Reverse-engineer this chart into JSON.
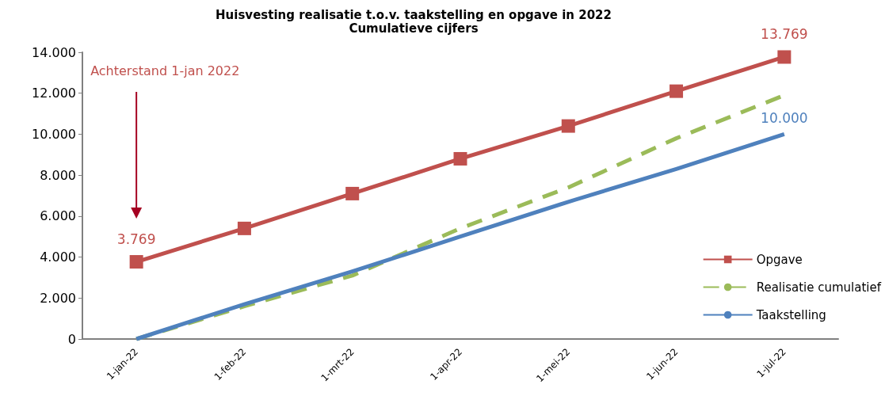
{
  "chart_data": {
    "type": "line",
    "title": "Huisvesting realisatie t.o.v. taakstelling en opgave in 2022",
    "subtitle": "Cumulatieve cijfers",
    "categories": [
      "1-jan-22",
      "1-feb-22",
      "1-mrt-22",
      "1-apr-22",
      "1-mei-22",
      "1-jun-22",
      "1-jul-22"
    ],
    "series": [
      {
        "name": "Opgave",
        "color": "#c0504d",
        "marker": "square",
        "line_style": "solid",
        "values": [
          3769,
          5400,
          7100,
          8800,
          10400,
          12100,
          13769
        ],
        "value_labels": [
          "3.769",
          null,
          null,
          null,
          null,
          null,
          "13.769"
        ]
      },
      {
        "name": "Realisatie cumulatief",
        "color": "#9bbb59",
        "marker": "none",
        "line_style": "dashed",
        "values": [
          0,
          1600,
          3100,
          5400,
          7400,
          9800,
          11900
        ]
      },
      {
        "name": "Taakstelling",
        "color": "#4f81bd",
        "marker": "none",
        "line_style": "solid",
        "values": [
          0,
          1700,
          3300,
          5000,
          6700,
          8300,
          10000
        ],
        "value_labels": [
          null,
          null,
          null,
          null,
          null,
          null,
          "10.000"
        ]
      }
    ],
    "ylim": [
      0,
      14000
    ],
    "yticks": [
      {
        "value": 0,
        "label": "0"
      },
      {
        "value": 2000,
        "label": "2.000"
      },
      {
        "value": 4000,
        "label": "4.000"
      },
      {
        "value": 6000,
        "label": "6.000"
      },
      {
        "value": 8000,
        "label": "8.000"
      },
      {
        "value": 10000,
        "label": "10.000"
      },
      {
        "value": 12000,
        "label": "12.000"
      },
      {
        "value": 14000,
        "label": "14.000"
      }
    ],
    "annotations": [
      "Achterstand 1-jan 2022"
    ],
    "grid": false,
    "legend": "bottom right"
  }
}
